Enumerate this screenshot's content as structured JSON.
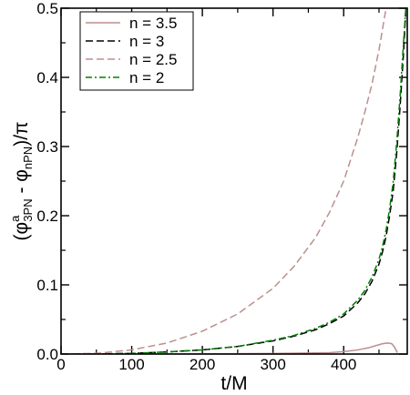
{
  "chart_data": {
    "type": "line",
    "xlabel": "t/M",
    "ylabel": {
      "open": "(φ",
      "sup": "a",
      "sub1": "3PN",
      "mid": " - φ",
      "sub2": "nPN",
      "close": ")/π"
    },
    "xlim": [
      0,
      490
    ],
    "ylim": [
      0,
      0.5
    ],
    "x_ticks": [
      0,
      100,
      200,
      300,
      400
    ],
    "x_tick_labels": [
      "0",
      "100",
      "200",
      "300",
      "400"
    ],
    "y_ticks": [
      0,
      0.1,
      0.2,
      0.3,
      0.4,
      0.5
    ],
    "y_tick_labels": [
      "0.0",
      "0.1",
      "0.2",
      "0.3",
      "0.4",
      "0.5"
    ],
    "grid": false,
    "legend_position": "top-left",
    "series": [
      {
        "name": "n = 3.5",
        "color": "#bc8f8f",
        "dash": "solid",
        "x": [
          0,
          100,
          200,
          300,
          350,
          380,
          400,
          420,
          435,
          445,
          455,
          462,
          468,
          472,
          476
        ],
        "y": [
          0,
          0,
          0.0003,
          0.0008,
          0.0015,
          0.002,
          0.0035,
          0.006,
          0.009,
          0.012,
          0.015,
          0.016,
          0.015,
          0.01,
          0.002
        ]
      },
      {
        "name": "n = 3",
        "color": "#000000",
        "dash": "dashed",
        "x": [
          0,
          50,
          100,
          150,
          200,
          250,
          300,
          330,
          360,
          380,
          400,
          420,
          430,
          440,
          450,
          455,
          460,
          465,
          470,
          475,
          480,
          485,
          488
        ],
        "y": [
          0,
          0.0002,
          0.001,
          0.003,
          0.006,
          0.011,
          0.019,
          0.026,
          0.035,
          0.044,
          0.055,
          0.074,
          0.087,
          0.105,
          0.13,
          0.148,
          0.17,
          0.2,
          0.235,
          0.29,
          0.36,
          0.44,
          0.5
        ]
      },
      {
        "name": "n = 2.5",
        "color": "#bc8f8f",
        "dash": "dashed",
        "x": [
          0,
          50,
          100,
          150,
          200,
          250,
          300,
          330,
          360,
          380,
          400,
          420,
          430,
          440,
          450,
          455,
          460
        ],
        "y": [
          0,
          0.001,
          0.006,
          0.016,
          0.033,
          0.058,
          0.095,
          0.127,
          0.168,
          0.205,
          0.25,
          0.313,
          0.35,
          0.39,
          0.44,
          0.47,
          0.5
        ]
      },
      {
        "name": "n = 2",
        "color": "#008000",
        "dash": "dashdot",
        "x": [
          0,
          50,
          100,
          150,
          200,
          250,
          300,
          330,
          360,
          380,
          400,
          420,
          430,
          440,
          450,
          455,
          460,
          465,
          470,
          475,
          480,
          485,
          488
        ],
        "y": [
          0,
          0.0002,
          0.001,
          0.003,
          0.006,
          0.011,
          0.02,
          0.027,
          0.037,
          0.046,
          0.058,
          0.078,
          0.092,
          0.111,
          0.137,
          0.156,
          0.179,
          0.21,
          0.248,
          0.305,
          0.375,
          0.455,
          0.5
        ]
      }
    ]
  }
}
